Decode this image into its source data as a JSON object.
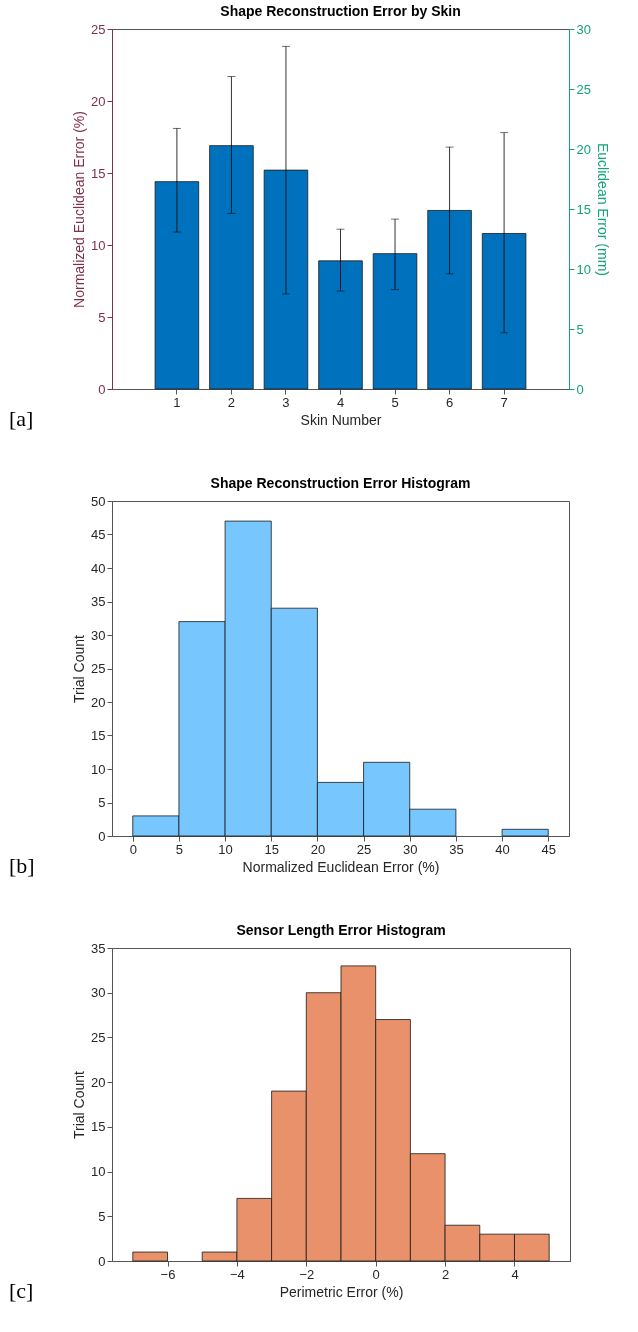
{
  "chart_data": [
    {
      "type": "bar",
      "title": "Shape Reconstruction Error by Skin",
      "xlabel": "Skin Number",
      "ylabel": "Normalized Euclidean Error (%)",
      "y2label": "Euclidean Error (mm)",
      "categories": [
        "1",
        "2",
        "3",
        "4",
        "5",
        "6",
        "7"
      ],
      "values": [
        14.4,
        16.9,
        15.2,
        8.9,
        9.4,
        12.4,
        10.8
      ],
      "errors": [
        [
          10.9,
          18.1
        ],
        [
          12.2,
          21.7
        ],
        [
          6.6,
          23.8
        ],
        [
          6.8,
          11.1
        ],
        [
          6.9,
          11.8
        ],
        [
          8.0,
          16.8
        ],
        [
          3.9,
          17.8
        ]
      ],
      "color": "#0072bd",
      "ylim": [
        0,
        25
      ],
      "yticks": [
        0,
        5,
        10,
        15,
        20,
        25
      ],
      "y2lim": [
        0,
        30
      ],
      "y2ticks": [
        0,
        5,
        10,
        15,
        20,
        25,
        30
      ],
      "annotations": [
        "[a]"
      ]
    },
    {
      "type": "histogram",
      "title": "Shape Reconstruction Error Histogram",
      "xlabel": "Normalized Euclidean Error (%)",
      "ylabel": "Trial Count",
      "bins": [
        0,
        5,
        10,
        15,
        20,
        25,
        30,
        35,
        40,
        45
      ],
      "values": [
        3,
        32,
        47,
        34,
        8,
        11,
        4,
        0,
        1
      ],
      "color": "#77c6fe",
      "xlim": [
        -2.25,
        47.25
      ],
      "xticks": [
        0,
        5,
        10,
        15,
        20,
        25,
        30,
        35,
        40,
        45
      ],
      "ylim": [
        0,
        50
      ],
      "yticks": [
        0,
        5,
        10,
        15,
        20,
        25,
        30,
        35,
        40,
        45,
        50
      ],
      "annotations": [
        "[b]"
      ]
    },
    {
      "type": "histogram",
      "title": "Sensor Length Error Histogram",
      "xlabel": "Perimetric Error (%)",
      "ylabel": "Trial Count",
      "bins": [
        -7,
        -6,
        -5,
        -4,
        -3,
        -2,
        -1,
        0,
        1,
        2,
        3,
        4,
        5
      ],
      "values": [
        1,
        0,
        1,
        7,
        19,
        30,
        33,
        27,
        12,
        4,
        3,
        3
      ],
      "color": "#e8916a",
      "xlim": [
        -7.6,
        5.6
      ],
      "xticks": [
        -6,
        -4,
        -2,
        0,
        2,
        4
      ],
      "ylim": [
        0,
        35
      ],
      "yticks": [
        0,
        5,
        10,
        15,
        20,
        25,
        30,
        35
      ],
      "annotations": [
        "[c]"
      ]
    }
  ]
}
